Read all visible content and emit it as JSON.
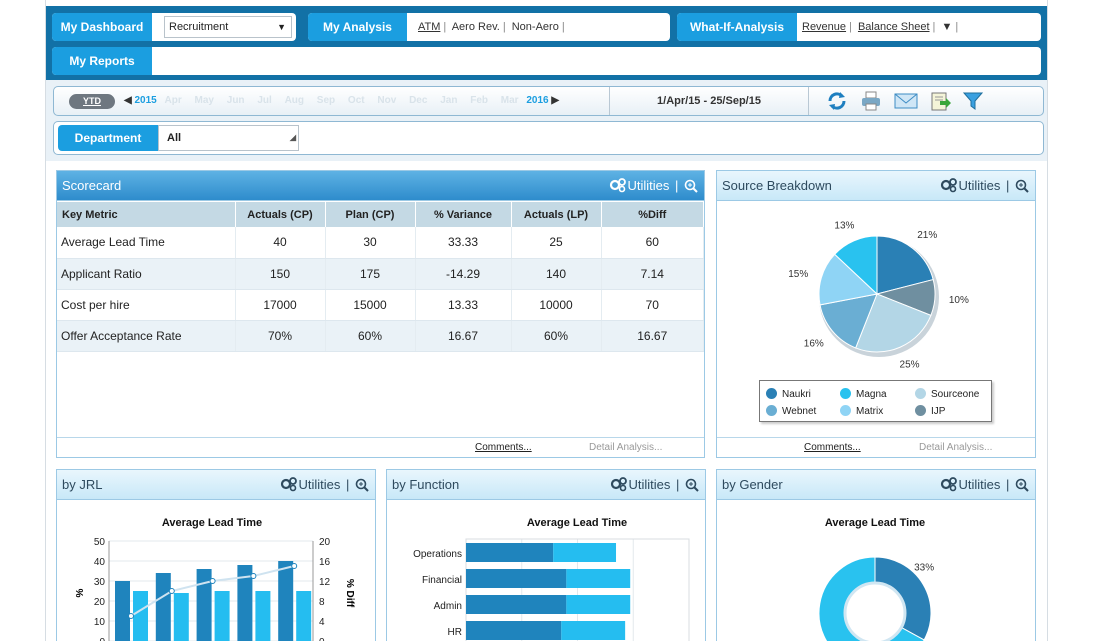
{
  "nav": {
    "dashboard_label": "My Dashboard",
    "dashboard_select": "Recruitment",
    "analysis_label": "My Analysis",
    "analysis_links": [
      "ATM",
      "Aero Rev.",
      "Non-Aero"
    ],
    "whatif_label": "What-If-Analysis",
    "whatif_links": [
      "Revenue",
      "Balance Sheet"
    ],
    "whatif_arrow": "▼",
    "reports_label": "My Reports"
  },
  "timebar": {
    "ytd_label": "YTD",
    "start_year": "2015",
    "end_year": "2016",
    "months": [
      "Apr",
      "May",
      "Jun",
      "Jul",
      "Aug",
      "Sep",
      "Oct",
      "Nov",
      "Dec",
      "Jan",
      "Feb",
      "Mar"
    ],
    "date_range": "1/Apr/15 - 25/Sep/15",
    "tools": [
      "refresh-icon",
      "print-icon",
      "email-icon",
      "export-icon",
      "filter-icon"
    ]
  },
  "filter": {
    "label": "Department",
    "value": "All"
  },
  "common": {
    "utilities": "Utilities",
    "comments": "Comments...",
    "detail": "Detail Analysis..."
  },
  "scorecard": {
    "title": "Scorecard",
    "columns": [
      "Key Metric",
      "Actuals (CP)",
      "Plan (CP)",
      "% Variance",
      "Actuals (LP)",
      "%Diff"
    ],
    "rows": [
      [
        "Average Lead Time",
        "40",
        "30",
        "33.33",
        "25",
        "60"
      ],
      [
        "Applicant Ratio",
        "150",
        "175",
        "-14.29",
        "140",
        "7.14"
      ],
      [
        "Cost per hire",
        "17000",
        "15000",
        "13.33",
        "10000",
        "70"
      ],
      [
        "Offer Acceptance Rate",
        "70%",
        "60%",
        "16.67",
        "60%",
        "16.67"
      ]
    ]
  },
  "source": {
    "title": "Source Breakdown",
    "legend": [
      "Naukri",
      "Magna",
      "Sourceone",
      "Webnet",
      "Matrix",
      "IJP"
    ]
  },
  "jrl": {
    "title": "by JRL"
  },
  "func": {
    "title": "by Function"
  },
  "gender": {
    "title": "by Gender"
  },
  "chart_data": [
    {
      "type": "pie",
      "labels": [
        "Naukri",
        "Magna",
        "Sourceone",
        "Webnet",
        "Matrix",
        "IJP"
      ],
      "values": [
        21,
        10,
        25,
        16,
        15,
        13
      ],
      "value_labels": [
        "21%",
        "10%",
        "25%",
        "16%",
        "15%",
        "13%"
      ],
      "colors": [
        "#2a80b5",
        "#6f8fa0",
        "#b3d6e6",
        "#6aaed3",
        "#8fd4f5",
        "#29c2ef"
      ]
    },
    {
      "type": "bar",
      "title": "Average Lead Time",
      "ylabel": "%",
      "y2label": "% Diff",
      "ylim": [
        0,
        50
      ],
      "y2lim": [
        0,
        20
      ],
      "yticks": [
        0,
        10,
        20,
        30,
        40,
        50
      ],
      "y2ticks": [
        0,
        4,
        8,
        12,
        16,
        20
      ],
      "series": [
        {
          "values": [
            30,
            34,
            36,
            38,
            40
          ],
          "color": "#1f84bd"
        },
        {
          "values": [
            25,
            24,
            25,
            25,
            25
          ],
          "color": "#25bdf0"
        }
      ],
      "line": {
        "values": [
          5,
          10,
          12,
          13,
          15
        ],
        "color": "#cfe3f0"
      }
    },
    {
      "type": "bar",
      "title": "Average Lead Time",
      "categories": [
        "Operations",
        "Financial",
        "Admin",
        "HR"
      ],
      "series": [
        {
          "values": [
            86,
            99,
            99,
            94
          ],
          "color": "#1f84bd"
        },
        {
          "values": [
            62,
            63,
            63,
            63
          ],
          "color": "#25bdf0"
        }
      ],
      "xlim": [
        0,
        220
      ]
    },
    {
      "type": "pie",
      "title": "Average Lead Time",
      "values": [
        33,
        67
      ],
      "value_labels": [
        "33%"
      ],
      "colors": [
        "#2a80b5",
        "#29c2ef"
      ]
    }
  ]
}
